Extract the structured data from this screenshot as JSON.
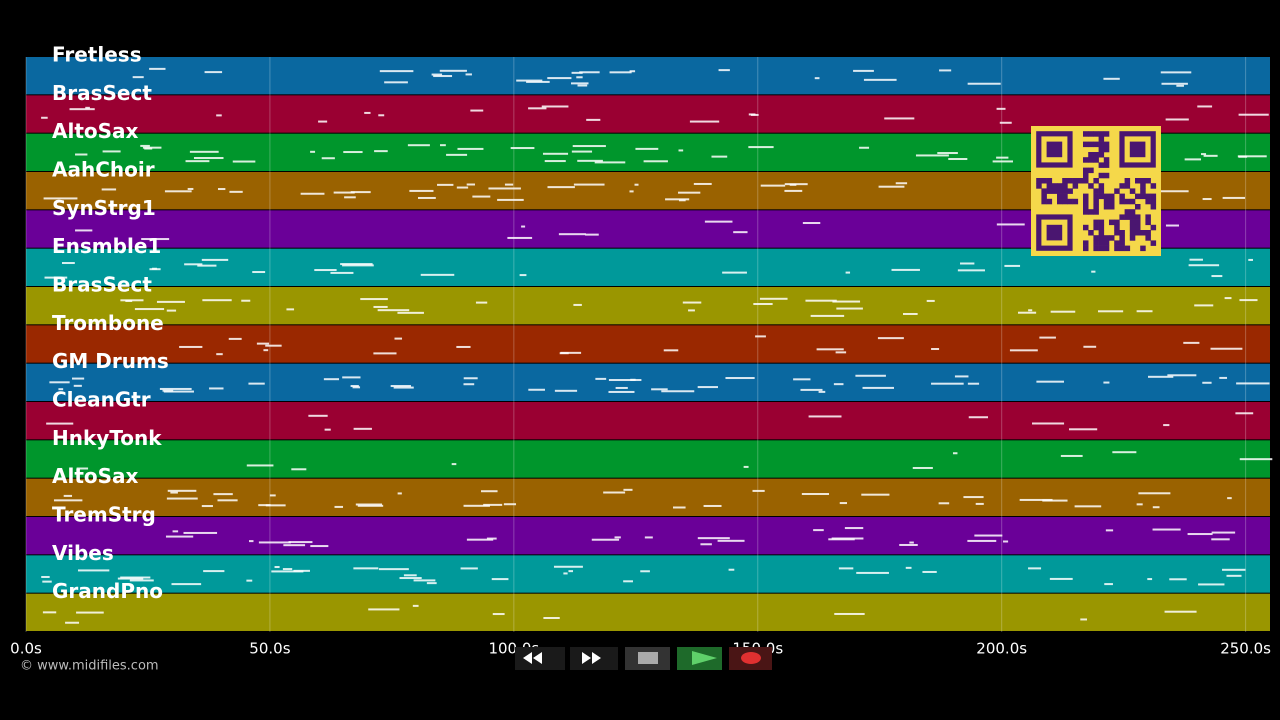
{
  "tracks": [
    {
      "name": "Fretless",
      "color": "#0a68a0"
    },
    {
      "name": "BrasSect",
      "color": "#9a0032"
    },
    {
      "name": "AltoSax",
      "color": "#00962c"
    },
    {
      "name": "AahChoir",
      "color": "#9a6200"
    },
    {
      "name": "SynStrg1",
      "color": "#6a0098"
    },
    {
      "name": "Ensmble1",
      "color": "#00999a"
    },
    {
      "name": "BrasSect",
      "color": "#9a9600"
    },
    {
      "name": "Trombone",
      "color": "#9a2800"
    },
    {
      "name": "GM Drums",
      "color": "#0a68a0"
    },
    {
      "name": "CleanGtr",
      "color": "#9a0032"
    },
    {
      "name": "HnkyTonk",
      "color": "#00962c"
    },
    {
      "name": "AltoSax",
      "color": "#9a6200"
    },
    {
      "name": "TremStrg",
      "color": "#6a0098"
    },
    {
      "name": "Vibes",
      "color": "#00999a"
    },
    {
      "name": "GrandPno",
      "color": "#9a9600"
    }
  ],
  "timeline": {
    "xlim": [
      0,
      255
    ],
    "ticks": [
      {
        "value": 0,
        "label": "0.0s"
      },
      {
        "value": 50,
        "label": "50.0s"
      },
      {
        "value": 100,
        "label": "100.0s"
      },
      {
        "value": 150,
        "label": "150.0s"
      },
      {
        "value": 200,
        "label": "200.0s"
      },
      {
        "value": 250,
        "label": "250.0s"
      }
    ]
  },
  "copyright": "© www.midifiles.com"
}
